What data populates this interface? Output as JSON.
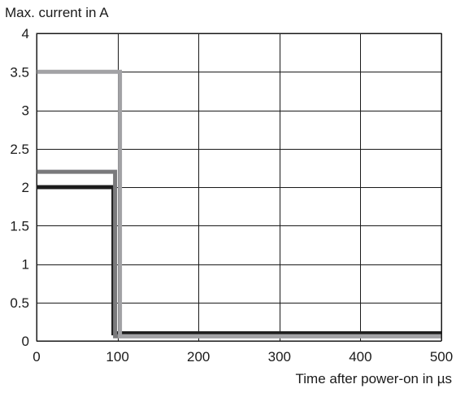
{
  "chart_data": {
    "type": "line",
    "title": "",
    "ylabel": "Max. current in A",
    "xlabel": "Time after power-on in µs",
    "xlim": [
      0,
      500
    ],
    "ylim": [
      0,
      4
    ],
    "x_ticks": [
      0,
      100,
      200,
      300,
      400,
      500
    ],
    "y_ticks": [
      0,
      0.5,
      1,
      1.5,
      2,
      2.5,
      3,
      3.5,
      4
    ],
    "x_tick_labels": [
      "0",
      "100",
      "200",
      "300",
      "400",
      "500"
    ],
    "y_tick_labels": [
      "0",
      "0.5",
      "1",
      "1.5",
      "2",
      "2.5",
      "3",
      "3.5",
      "4"
    ],
    "grid": true,
    "legend": "none",
    "series": [
      {
        "color": "#1c1c1c",
        "points": [
          [
            0,
            2.0
          ],
          [
            95,
            2.0
          ],
          [
            95,
            0.1
          ],
          [
            500,
            0.1
          ]
        ]
      },
      {
        "color": "#7a7a7c",
        "points": [
          [
            0,
            2.2
          ],
          [
            97,
            2.2
          ],
          [
            97,
            0.06
          ],
          [
            500,
            0.06
          ]
        ]
      },
      {
        "color": "#a2a2a5",
        "points": [
          [
            0,
            3.5
          ],
          [
            103,
            3.5
          ],
          [
            103,
            0.06
          ],
          [
            500,
            0.06
          ]
        ]
      }
    ]
  }
}
